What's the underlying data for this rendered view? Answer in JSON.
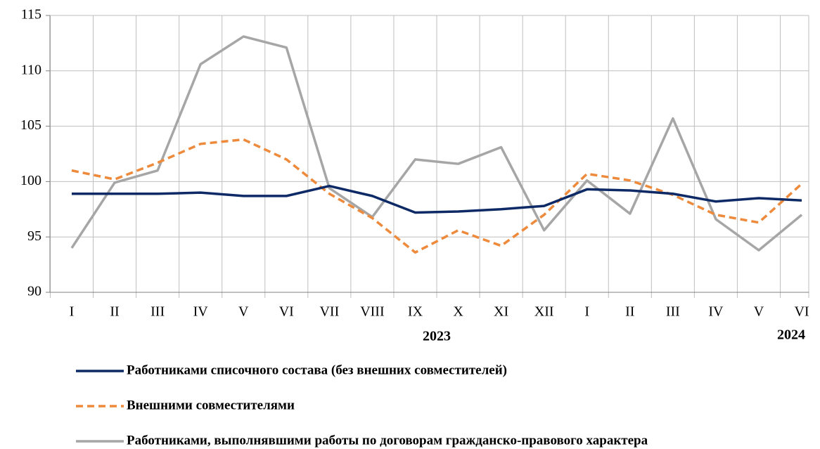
{
  "chart_data": {
    "type": "line",
    "categories": [
      "I",
      "II",
      "III",
      "IV",
      "V",
      "VI",
      "VII",
      "VIII",
      "IX",
      "X",
      "XI",
      "XII",
      "I",
      "II",
      "III",
      "IV",
      "V",
      "VI"
    ],
    "annotations": [
      "2023",
      "2024"
    ],
    "series": [
      {
        "name": "Работниками списочного состава (без внешних совместителей)",
        "color": "#0d2a66",
        "dash": "solid",
        "values": [
          98.9,
          98.9,
          98.9,
          99.0,
          98.7,
          98.7,
          99.6,
          98.7,
          97.2,
          97.3,
          97.5,
          97.8,
          99.3,
          99.2,
          98.9,
          98.2,
          98.5,
          98.3
        ]
      },
      {
        "name": "Внешними совместителями",
        "color": "#ed8a3c",
        "dash": "dashed",
        "values": [
          101.0,
          100.2,
          101.7,
          103.4,
          103.8,
          102.0,
          98.9,
          96.7,
          93.6,
          95.6,
          94.2,
          97.0,
          100.7,
          100.1,
          98.8,
          97.0,
          96.3,
          99.8
        ]
      },
      {
        "name": "Работниками, выполнявшими работы по договорам  гражданско-правового характера",
        "color": "#a6a6a6",
        "dash": "solid",
        "values": [
          94.0,
          99.9,
          101.0,
          110.6,
          113.1,
          112.1,
          99.4,
          96.8,
          102.0,
          101.6,
          103.1,
          95.6,
          100.1,
          97.1,
          105.7,
          96.6,
          93.8,
          97.0
        ]
      }
    ],
    "ylim": [
      90,
      115
    ],
    "yticks": [
      90,
      95,
      100,
      105,
      110,
      115
    ],
    "grid": true,
    "legend": "bottom"
  }
}
